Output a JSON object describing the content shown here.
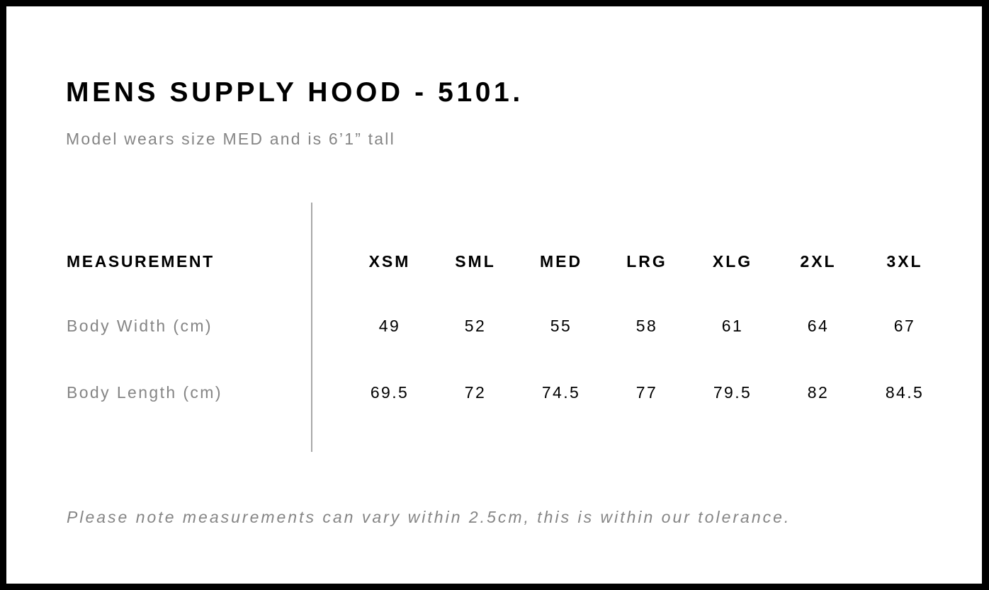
{
  "title": "MENS SUPPLY HOOD - 5101.",
  "subtitle": "Model wears size MED and is 6’1” tall",
  "table": {
    "header_label": "MEASUREMENT",
    "sizes": [
      "XSM",
      "SML",
      "MED",
      "LRG",
      "XLG",
      "2XL",
      "3XL"
    ],
    "rows": [
      {
        "label": "Body Width (cm)",
        "values": [
          "49",
          "52",
          "55",
          "58",
          "61",
          "64",
          "67"
        ]
      },
      {
        "label": "Body Length (cm)",
        "values": [
          "69.5",
          "72",
          "74.5",
          "77",
          "79.5",
          "82",
          "84.5"
        ]
      }
    ]
  },
  "note": "Please note measurements can vary within 2.5cm, this is within our tolerance."
}
